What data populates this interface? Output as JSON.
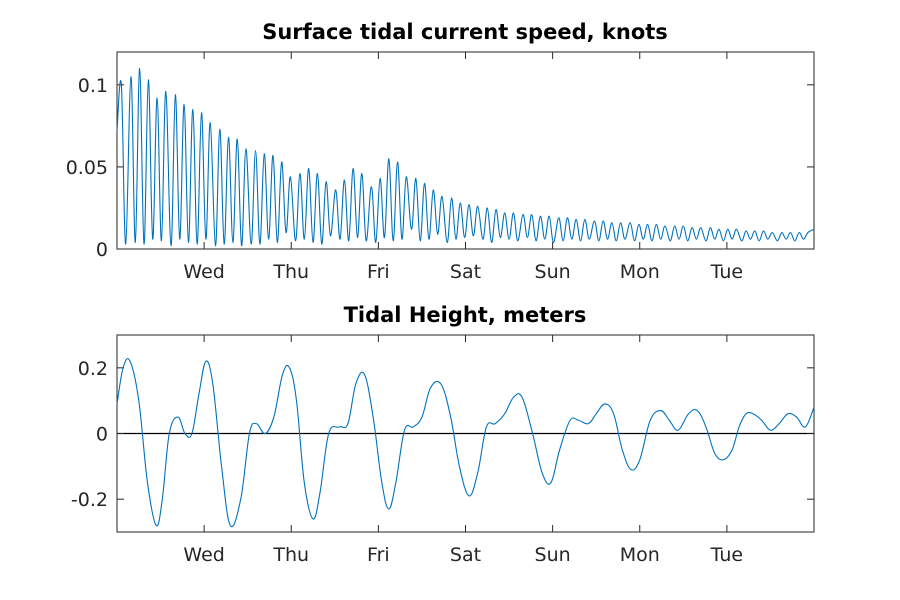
{
  "chart_data": [
    {
      "type": "line",
      "title": "Surface tidal current speed, knots",
      "xlabel": "",
      "ylabel": "",
      "x_ticks": [
        "Wed",
        "Thu",
        "Fri",
        "Sat",
        "Sun",
        "Mon",
        "Tue"
      ],
      "xlim_days": [
        0,
        8
      ],
      "x_tick_days": [
        1,
        2,
        3,
        4,
        5,
        6,
        7
      ],
      "y_ticks": [
        "0",
        "0.05",
        "0.1"
      ],
      "y_tick_values": [
        0,
        0.05,
        0.1
      ],
      "ylim": [
        0,
        0.12
      ],
      "grid": false,
      "series": [
        {
          "color": "#0072BD",
          "x": [
            0.0,
            0.05,
            0.1,
            0.16,
            0.21,
            0.26,
            0.31,
            0.36,
            0.41,
            0.46,
            0.51,
            0.56,
            0.62,
            0.67,
            0.72,
            0.77,
            0.82,
            0.87,
            0.92,
            0.97,
            1.02,
            1.07,
            1.13,
            1.18,
            1.23,
            1.28,
            1.33,
            1.38,
            1.43,
            1.48,
            1.54,
            1.59,
            1.64,
            1.69,
            1.74,
            1.79,
            1.84,
            1.89,
            1.94,
            1.99,
            2.05,
            2.1,
            2.15,
            2.2,
            2.25,
            2.3,
            2.35,
            2.4,
            2.45,
            2.51,
            2.56,
            2.61,
            2.66,
            2.71,
            2.76,
            2.81,
            2.86,
            2.92,
            2.97,
            3.02,
            3.07,
            3.12,
            3.17,
            3.22,
            3.27,
            3.32,
            3.38,
            3.43,
            3.48,
            3.53,
            3.58,
            3.63,
            3.68,
            3.73,
            3.79,
            3.84,
            3.89,
            3.94,
            3.99,
            4.04,
            4.09,
            4.14,
            4.2,
            4.25,
            4.3,
            4.35,
            4.4,
            4.45,
            4.5,
            4.55,
            4.6,
            4.66,
            4.71,
            4.76,
            4.81,
            4.86,
            4.91,
            4.96,
            5.01,
            5.07,
            5.12,
            5.17,
            5.22,
            5.27,
            5.32,
            5.37,
            5.42,
            5.48,
            5.53,
            5.58,
            5.63,
            5.68,
            5.73,
            5.78,
            5.83,
            5.89,
            5.94,
            5.99,
            6.04,
            6.09,
            6.14,
            6.19,
            6.24,
            6.29,
            6.35,
            6.4,
            6.45,
            6.5,
            6.55,
            6.6,
            6.65,
            6.7,
            6.76,
            6.81,
            6.86,
            6.91,
            6.96,
            7.01,
            7.06,
            7.11,
            7.17,
            7.22,
            7.27,
            7.32,
            7.37,
            7.42,
            7.47,
            7.52,
            7.58,
            7.63,
            7.68,
            7.73,
            7.78,
            7.83,
            7.88,
            7.93,
            8.0
          ],
          "values": [
            0.072,
            0.1,
            0.003,
            0.105,
            0.004,
            0.11,
            0.003,
            0.103,
            0.006,
            0.092,
            0.005,
            0.096,
            0.002,
            0.094,
            0.006,
            0.088,
            0.004,
            0.085,
            0.003,
            0.083,
            0.006,
            0.077,
            0.002,
            0.073,
            0.003,
            0.068,
            0.004,
            0.067,
            0.002,
            0.061,
            0.003,
            0.06,
            0.003,
            0.058,
            0.006,
            0.057,
            0.004,
            0.053,
            0.01,
            0.044,
            0.005,
            0.046,
            0.006,
            0.049,
            0.004,
            0.046,
            0.003,
            0.041,
            0.008,
            0.036,
            0.006,
            0.042,
            0.005,
            0.049,
            0.007,
            0.046,
            0.005,
            0.038,
            0.004,
            0.043,
            0.007,
            0.055,
            0.005,
            0.053,
            0.006,
            0.044,
            0.012,
            0.043,
            0.005,
            0.04,
            0.006,
            0.036,
            0.009,
            0.032,
            0.004,
            0.031,
            0.006,
            0.028,
            0.007,
            0.027,
            0.008,
            0.026,
            0.006,
            0.025,
            0.004,
            0.024,
            0.007,
            0.022,
            0.006,
            0.022,
            0.005,
            0.021,
            0.007,
            0.021,
            0.005,
            0.02,
            0.006,
            0.02,
            0.004,
            0.019,
            0.005,
            0.019,
            0.006,
            0.018,
            0.005,
            0.018,
            0.006,
            0.017,
            0.005,
            0.017,
            0.006,
            0.016,
            0.005,
            0.016,
            0.006,
            0.016,
            0.005,
            0.015,
            0.006,
            0.015,
            0.005,
            0.015,
            0.006,
            0.014,
            0.005,
            0.014,
            0.006,
            0.014,
            0.005,
            0.013,
            0.006,
            0.013,
            0.005,
            0.013,
            0.006,
            0.012,
            0.005,
            0.012,
            0.006,
            0.012,
            0.005,
            0.011,
            0.006,
            0.011,
            0.005,
            0.011,
            0.006,
            0.01,
            0.005,
            0.01,
            0.006,
            0.01,
            0.005,
            0.01,
            0.006,
            0.01,
            0.012
          ]
        }
      ]
    },
    {
      "type": "line",
      "title": "Tidal Height, meters",
      "xlabel": "",
      "ylabel": "",
      "x_ticks": [
        "Wed",
        "Thu",
        "Fri",
        "Sat",
        "Sun",
        "Mon",
        "Tue"
      ],
      "xlim_days": [
        0,
        8
      ],
      "x_tick_days": [
        1,
        2,
        3,
        4,
        5,
        6,
        7
      ],
      "y_ticks": [
        "-0.2",
        "0",
        "0.2"
      ],
      "y_tick_values": [
        -0.2,
        0,
        0.2
      ],
      "ylim": [
        -0.3,
        0.3
      ],
      "grid": false,
      "reference_line": 0,
      "series": [
        {
          "color": "#0072BD",
          "x": [
            0.0,
            0.07,
            0.15,
            0.25,
            0.35,
            0.45,
            0.52,
            0.6,
            0.7,
            0.78,
            0.86,
            0.94,
            1.02,
            1.1,
            1.2,
            1.3,
            1.42,
            1.52,
            1.6,
            1.7,
            1.8,
            1.9,
            1.98,
            2.06,
            2.15,
            2.25,
            2.33,
            2.43,
            2.55,
            2.65,
            2.74,
            2.84,
            2.94,
            3.04,
            3.12,
            3.2,
            3.3,
            3.4,
            3.5,
            3.6,
            3.72,
            3.83,
            3.93,
            4.04,
            4.14,
            4.24,
            4.34,
            4.45,
            4.55,
            4.65,
            4.77,
            4.88,
            4.98,
            5.08,
            5.2,
            5.3,
            5.41,
            5.5,
            5.6,
            5.7,
            5.8,
            5.9,
            6.0,
            6.12,
            6.24,
            6.34,
            6.44,
            6.56,
            6.66,
            6.76,
            6.86,
            6.96,
            7.06,
            7.14,
            7.22,
            7.3,
            7.4,
            7.5,
            7.6,
            7.7,
            7.8,
            7.9,
            8.0
          ],
          "values": [
            0.09,
            0.2,
            0.22,
            0.1,
            -0.15,
            -0.28,
            -0.2,
            0.0,
            0.05,
            0.0,
            0.0,
            0.12,
            0.22,
            0.15,
            -0.1,
            -0.28,
            -0.2,
            0.0,
            0.03,
            0.0,
            0.05,
            0.18,
            0.2,
            0.1,
            -0.15,
            -0.26,
            -0.18,
            0.0,
            0.02,
            0.03,
            0.15,
            0.18,
            0.05,
            -0.15,
            -0.23,
            -0.15,
            0.01,
            0.02,
            0.05,
            0.14,
            0.15,
            0.05,
            -0.1,
            -0.19,
            -0.12,
            0.02,
            0.03,
            0.06,
            0.11,
            0.11,
            0.0,
            -0.12,
            -0.15,
            -0.05,
            0.04,
            0.04,
            0.03,
            0.06,
            0.09,
            0.06,
            -0.05,
            -0.11,
            -0.08,
            0.04,
            0.07,
            0.04,
            0.01,
            0.06,
            0.07,
            0.02,
            -0.06,
            -0.08,
            -0.05,
            0.02,
            0.06,
            0.06,
            0.04,
            0.01,
            0.03,
            0.06,
            0.05,
            0.02,
            0.08
          ]
        }
      ]
    }
  ]
}
